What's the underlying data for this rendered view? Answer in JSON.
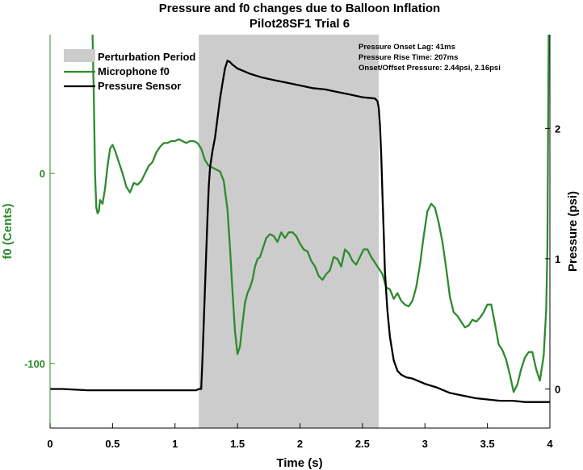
{
  "chart_data": {
    "type": "line",
    "title": "Pressure and f0 changes due to Balloon Inflation",
    "subtitle": "Pilot28SF1 Trial 6",
    "xlabel": "Time (s)",
    "ylabel_left": "f0 (Cents)",
    "ylabel_right": "Pressure (psi)",
    "xlim": [
      0,
      4
    ],
    "ylim_left": [
      -134,
      73
    ],
    "ylim_right": [
      -0.3,
      2.72
    ],
    "x_ticks": [
      "0",
      "0.5",
      "1",
      "1.5",
      "2",
      "2.5",
      "3",
      "3.5",
      "4"
    ],
    "y_left_ticks": [
      "0",
      "-100"
    ],
    "y_right_ticks": [
      "0",
      "1",
      "2"
    ],
    "grid": false,
    "legend_position": "top-left",
    "colors": {
      "perturbation": "#cccccc",
      "f0": "#2e8b2e",
      "pressure": "#000000",
      "left_axis": "#2e8b2e",
      "right_axis": "#000000"
    },
    "perturbation_period": {
      "name": "Perturbation Period",
      "x": [
        1.19,
        2.63
      ]
    },
    "series": [
      {
        "name": "Microphone f0",
        "axis": "left",
        "color": "#2e8b2e",
        "x": [
          0.34,
          0.35,
          0.36,
          0.37,
          0.38,
          0.39,
          0.4,
          0.42,
          0.44,
          0.46,
          0.48,
          0.5,
          0.52,
          0.55,
          0.58,
          0.61,
          0.64,
          0.67,
          0.7,
          0.73,
          0.76,
          0.79,
          0.82,
          0.85,
          0.88,
          0.91,
          0.94,
          0.97,
          1.0,
          1.03,
          1.06,
          1.09,
          1.12,
          1.15,
          1.18,
          1.21,
          1.24,
          1.27,
          1.3,
          1.33,
          1.36,
          1.39,
          1.42,
          1.44,
          1.46,
          1.48,
          1.5,
          1.52,
          1.54,
          1.56,
          1.58,
          1.6,
          1.62,
          1.64,
          1.66,
          1.68,
          1.7,
          1.73,
          1.76,
          1.79,
          1.82,
          1.85,
          1.88,
          1.91,
          1.94,
          1.97,
          2.0,
          2.03,
          2.06,
          2.09,
          2.12,
          2.15,
          2.18,
          2.21,
          2.24,
          2.27,
          2.3,
          2.33,
          2.36,
          2.39,
          2.42,
          2.45,
          2.48,
          2.51,
          2.54,
          2.57,
          2.6,
          2.63,
          2.66,
          2.69,
          2.72,
          2.75,
          2.78,
          2.81,
          2.84,
          2.87,
          2.9,
          2.93,
          2.96,
          2.99,
          3.02,
          3.05,
          3.08,
          3.11,
          3.14,
          3.17,
          3.2,
          3.23,
          3.26,
          3.29,
          3.32,
          3.35,
          3.38,
          3.41,
          3.44,
          3.47,
          3.5,
          3.53,
          3.56,
          3.59,
          3.62,
          3.65,
          3.68,
          3.71,
          3.74,
          3.77,
          3.8,
          3.83,
          3.86,
          3.89,
          3.92,
          3.95,
          3.97,
          3.98,
          3.99
        ],
        "y": [
          73,
          40,
          0,
          -18,
          -21,
          -20,
          -14,
          -16,
          -8,
          4,
          13,
          15,
          12,
          6,
          0,
          -7,
          -10,
          -5,
          -6,
          -4,
          0,
          4,
          6,
          11,
          14,
          16,
          16,
          17,
          17,
          18,
          17,
          16,
          17,
          17,
          16,
          13,
          7,
          4,
          3,
          2,
          1,
          -4,
          -19,
          -39,
          -62,
          -83,
          -95,
          -91,
          -79,
          -68,
          -63,
          -60,
          -56,
          -49,
          -45,
          -44,
          -40,
          -34,
          -32,
          -33,
          -36,
          -31,
          -34,
          -31,
          -31,
          -33,
          -37,
          -40,
          -41,
          -46,
          -49,
          -54,
          -56,
          -53,
          -51,
          -44,
          -45,
          -49,
          -40,
          -42,
          -46,
          -48,
          -44,
          -40,
          -40,
          -44,
          -47,
          -50,
          -53,
          -60,
          -61,
          -66,
          -63,
          -67,
          -69,
          -70,
          -67,
          -60,
          -48,
          -33,
          -20,
          -16,
          -18,
          -26,
          -36,
          -50,
          -65,
          -73,
          -75,
          -78,
          -81,
          -80,
          -77,
          -78,
          -76,
          -73,
          -69,
          -69,
          -79,
          -90,
          -93,
          -98,
          -106,
          -115,
          -111,
          -103,
          -97,
          -94,
          -94,
          -103,
          -109,
          -96,
          -72,
          -40,
          73
        ]
      },
      {
        "name": "Pressure Sensor",
        "axis": "right",
        "color": "#000000",
        "x": [
          0.0,
          0.1,
          0.3,
          0.5,
          0.7,
          0.9,
          1.0,
          1.1,
          1.17,
          1.19,
          1.2,
          1.21,
          1.22,
          1.23,
          1.24,
          1.25,
          1.26,
          1.27,
          1.28,
          1.3,
          1.32,
          1.34,
          1.36,
          1.38,
          1.4,
          1.42,
          1.44,
          1.46,
          1.5,
          1.55,
          1.6,
          1.7,
          1.8,
          1.9,
          2.0,
          2.1,
          2.2,
          2.3,
          2.4,
          2.5,
          2.6,
          2.61,
          2.62,
          2.63,
          2.64,
          2.65,
          2.66,
          2.67,
          2.68,
          2.7,
          2.72,
          2.75,
          2.78,
          2.81,
          2.85,
          2.9,
          2.95,
          3.0,
          3.1,
          3.2,
          3.3,
          3.4,
          3.5,
          3.6,
          3.7,
          3.8,
          3.9,
          4.0
        ],
        "y": [
          0.0,
          0.0,
          -0.01,
          -0.01,
          -0.01,
          -0.01,
          -0.01,
          -0.01,
          -0.01,
          0.0,
          0.0,
          0.0,
          0.24,
          0.5,
          0.78,
          1.05,
          1.32,
          1.55,
          1.7,
          1.83,
          1.93,
          2.08,
          2.23,
          2.35,
          2.46,
          2.52,
          2.51,
          2.49,
          2.46,
          2.44,
          2.42,
          2.39,
          2.37,
          2.35,
          2.33,
          2.31,
          2.3,
          2.28,
          2.26,
          2.24,
          2.23,
          2.22,
          2.21,
          2.16,
          2.03,
          1.8,
          1.5,
          1.2,
          0.9,
          0.6,
          0.4,
          0.22,
          0.14,
          0.11,
          0.09,
          0.08,
          0.06,
          0.04,
          0.01,
          -0.03,
          -0.05,
          -0.07,
          -0.08,
          -0.09,
          -0.09,
          -0.1,
          -0.1,
          -0.1
        ]
      }
    ],
    "legend": [
      {
        "label": "Perturbation Period",
        "kind": "patch",
        "color": "#cccccc"
      },
      {
        "label": "Microphone f0",
        "kind": "line",
        "color": "#2e8b2e"
      },
      {
        "label": "Pressure Sensor",
        "kind": "line",
        "color": "#000000"
      }
    ],
    "annotations": [
      "Pressure Onset Lag: 41ms",
      "Pressure Rise Time: 207ms",
      "Onset/Offset Pressure: 2.44psi, 2.16psi"
    ]
  }
}
